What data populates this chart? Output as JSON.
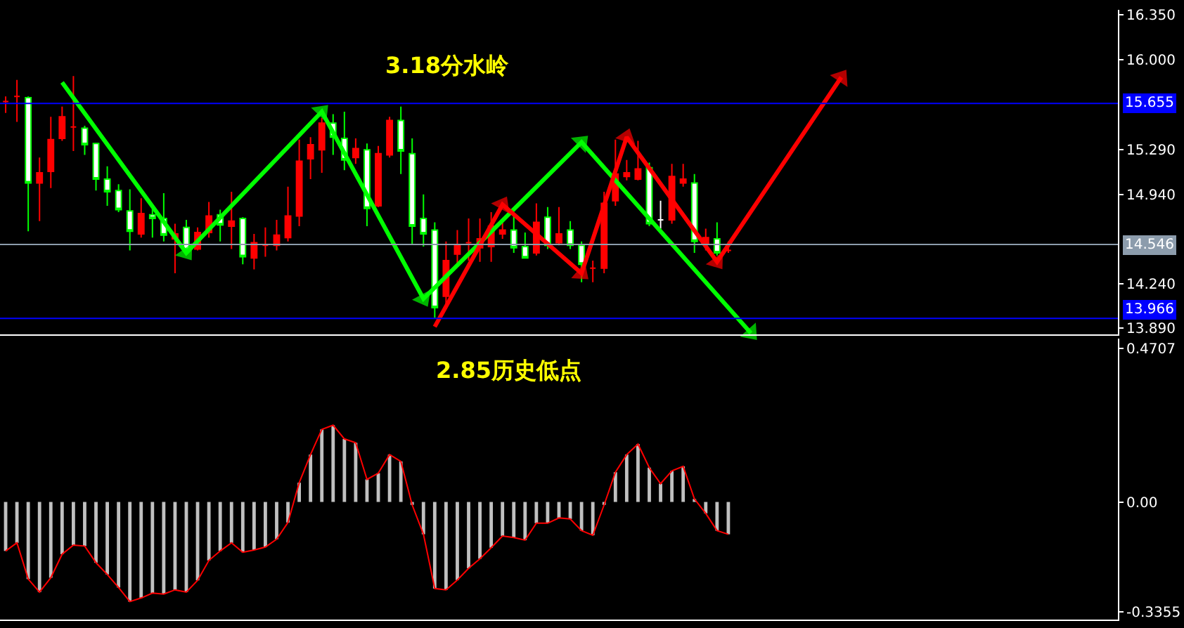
{
  "chart_data": [
    {
      "type": "candlestick",
      "annotations": [
        "3.18分水岭"
      ],
      "categories": [
        null,
        null,
        null,
        null,
        null,
        null,
        null,
        null,
        null,
        null,
        null,
        null,
        null,
        null,
        null,
        null,
        null,
        null,
        null,
        null,
        null,
        null,
        null,
        null,
        null,
        null,
        null,
        null,
        null,
        null,
        null,
        null,
        null,
        null,
        null,
        null,
        null,
        null,
        null,
        null,
        null,
        null,
        null,
        null,
        null,
        null,
        null,
        null,
        null,
        null,
        null,
        null,
        null,
        null,
        null,
        null,
        null,
        null,
        null,
        null,
        null,
        null,
        null,
        null,
        null,
        null,
        null,
        null,
        null,
        null,
        null,
        null,
        null,
        null,
        null,
        null,
        null,
        null,
        null,
        null,
        null,
        null,
        null,
        null,
        null,
        null,
        null,
        null,
        null,
        null,
        null,
        null,
        null,
        null,
        null,
        null,
        null,
        null,
        null
      ],
      "ohlc": [
        [
          15.67,
          15.71,
          15.58,
          15.67
        ],
        [
          15.71,
          15.84,
          15.51,
          15.71
        ],
        [
          15.7,
          15.71,
          14.65,
          15.03
        ],
        [
          15.03,
          15.23,
          14.73,
          15.11
        ],
        [
          15.12,
          15.55,
          14.99,
          15.37
        ],
        [
          15.38,
          15.63,
          15.36,
          15.55
        ],
        [
          15.47,
          15.87,
          15.28,
          15.47
        ],
        [
          15.46,
          15.48,
          15.25,
          15.33
        ],
        [
          15.34,
          15.34,
          14.97,
          15.06
        ],
        [
          15.06,
          15.16,
          14.85,
          14.96
        ],
        [
          14.97,
          15.02,
          14.8,
          14.82
        ],
        [
          14.81,
          14.98,
          14.5,
          14.65
        ],
        [
          14.63,
          14.91,
          14.6,
          14.79
        ],
        [
          14.78,
          14.86,
          14.6,
          14.75
        ],
        [
          14.75,
          14.95,
          14.57,
          14.62
        ],
        [
          14.59,
          14.71,
          14.32,
          14.63
        ],
        [
          14.68,
          14.74,
          14.48,
          14.5
        ],
        [
          14.51,
          14.68,
          14.5,
          14.64
        ],
        [
          14.64,
          14.88,
          14.6,
          14.77
        ],
        [
          14.78,
          14.82,
          14.57,
          14.7
        ],
        [
          14.69,
          14.96,
          14.51,
          14.73
        ],
        [
          14.75,
          14.76,
          14.39,
          14.45
        ],
        [
          14.44,
          14.63,
          14.35,
          14.56
        ],
        [
          14.54,
          14.68,
          14.45,
          14.54
        ],
        [
          14.54,
          14.74,
          14.5,
          14.62
        ],
        [
          14.6,
          15.0,
          14.57,
          14.77
        ],
        [
          14.77,
          15.37,
          14.69,
          15.2
        ],
        [
          15.22,
          15.39,
          15.06,
          15.33
        ],
        [
          15.29,
          15.54,
          15.11,
          15.5
        ],
        [
          15.5,
          15.57,
          15.25,
          15.39
        ],
        [
          15.38,
          15.59,
          15.13,
          15.21
        ],
        [
          15.23,
          15.38,
          15.18,
          15.3
        ],
        [
          15.29,
          15.34,
          14.69,
          14.83
        ],
        [
          14.85,
          15.32,
          14.84,
          15.26
        ],
        [
          15.25,
          15.55,
          15.23,
          15.52
        ],
        [
          15.52,
          15.63,
          15.1,
          15.28
        ],
        [
          15.26,
          15.38,
          14.55,
          14.69
        ],
        [
          14.75,
          14.94,
          14.53,
          14.63
        ],
        [
          14.66,
          14.72,
          13.97,
          14.05
        ],
        [
          14.14,
          14.57,
          14.07,
          14.42
        ],
        [
          14.47,
          14.66,
          14.39,
          14.54
        ],
        [
          14.56,
          14.75,
          14.42,
          14.56
        ],
        [
          14.52,
          14.75,
          14.41,
          14.59
        ],
        [
          14.53,
          14.8,
          14.41,
          14.69
        ],
        [
          14.63,
          14.73,
          14.59,
          14.66
        ],
        [
          14.66,
          14.78,
          14.48,
          14.52
        ],
        [
          14.53,
          14.64,
          14.44,
          14.44
        ],
        [
          14.48,
          14.87,
          14.46,
          14.72
        ],
        [
          14.76,
          14.84,
          14.51,
          14.54
        ],
        [
          14.56,
          14.84,
          14.54,
          14.63
        ],
        [
          14.66,
          14.73,
          14.51,
          14.54
        ],
        [
          14.54,
          14.57,
          14.25,
          14.39
        ],
        [
          14.36,
          14.42,
          14.25,
          14.36
        ],
        [
          14.36,
          14.96,
          14.32,
          14.87
        ],
        [
          14.89,
          15.37,
          14.85,
          15.1
        ],
        [
          15.08,
          15.21,
          15.05,
          15.11
        ],
        [
          15.06,
          15.36,
          15.05,
          15.14
        ],
        [
          15.15,
          15.19,
          14.69,
          14.71
        ],
        [
          14.74,
          14.89,
          14.67,
          14.74
        ],
        [
          14.74,
          15.18,
          14.71,
          15.08
        ],
        [
          15.03,
          15.18,
          15.0,
          15.06
        ],
        [
          15.03,
          15.1,
          14.48,
          14.57
        ],
        [
          14.55,
          14.67,
          14.5,
          14.6
        ],
        [
          14.59,
          14.72,
          14.46,
          14.48
        ],
        [
          14.5,
          14.57,
          14.48,
          14.5
        ],
        null,
        null,
        null,
        null,
        null,
        null,
        null,
        null,
        null,
        null,
        null,
        null,
        null,
        null,
        null,
        null,
        null,
        null,
        null,
        null,
        null,
        null,
        null,
        null,
        null,
        null,
        null,
        null,
        null,
        null,
        null,
        null,
        null,
        null
      ],
      "colors": [
        "#ff0000",
        "#ff0000",
        "#ffffff",
        "#ff0000",
        "#ff0000",
        "#ff0000",
        "#ff0000",
        "#ffffff",
        "#ffffff",
        "#ffffff",
        "#ffffff",
        "#ffffff",
        "#ff0000",
        "#ffffff",
        "#ffffff",
        "#ff0000",
        "#ffffff",
        "#ff0000",
        "#ff0000",
        "#ffffff",
        "#ff0000",
        "#ffffff",
        "#ff0000",
        "#ff0000",
        "#ff0000",
        "#ff0000",
        "#ff0000",
        "#ff0000",
        "#ff0000",
        "#ffffff",
        "#ffffff",
        "#ff0000",
        "#ffffff",
        "#ff0000",
        "#ff0000",
        "#ffffff",
        "#ffffff",
        "#ffffff",
        "#ffffff",
        "#ff0000",
        "#ff0000",
        "#ff0000",
        "#ff0000",
        "#ff0000",
        "#ff0000",
        "#ffffff",
        "#ffffff",
        "#ff0000",
        "#ffffff",
        "#ff0000",
        "#ffffff",
        "#ffffff",
        "#ff0000",
        "#ff0000",
        "#ff0000",
        "#ff0000",
        "#ff0000",
        "#ffffff",
        "#ffffff",
        "#ff0000",
        "#ff0000",
        "#ffffff",
        "#ff0000",
        "#ffffff",
        "#ff0000",
        null,
        null,
        null,
        null,
        null,
        null,
        null,
        null,
        null,
        null,
        null,
        null,
        null,
        null,
        null,
        null,
        null,
        null,
        null,
        null,
        null,
        null,
        null,
        null,
        null,
        null,
        null,
        null,
        null,
        null,
        null,
        null,
        null,
        null
      ],
      "series": [
        {
          "type": "line",
          "color": "#00ff00",
          "marker": "triangle",
          "values": [
            null,
            null,
            null,
            null,
            null,
            15.82,
            null,
            null,
            null,
            null,
            null,
            null,
            null,
            null,
            null,
            null,
            14.48,
            null,
            null,
            null,
            null,
            null,
            null,
            null,
            null,
            null,
            null,
            null,
            15.59,
            null,
            null,
            null,
            null,
            null,
            null,
            null,
            null,
            14.12,
            null,
            null,
            null,
            null,
            null,
            null,
            null,
            null,
            null,
            null,
            null,
            null,
            null,
            15.35,
            null,
            null,
            null,
            null,
            null,
            null,
            null,
            null,
            null,
            null,
            null,
            null,
            null,
            null,
            13.85,
            null,
            null,
            null,
            null,
            null,
            null,
            null,
            null,
            null,
            null,
            null,
            null,
            null,
            null,
            null,
            null,
            null,
            null,
            null,
            null,
            null,
            null,
            null,
            null,
            null,
            null,
            null,
            null,
            null,
            null,
            null,
            null
          ]
        },
        {
          "type": "line",
          "color": "#ff0000",
          "marker": "triangle",
          "values": [
            null,
            null,
            null,
            null,
            null,
            null,
            null,
            null,
            null,
            null,
            null,
            null,
            null,
            null,
            null,
            null,
            null,
            null,
            null,
            null,
            null,
            null,
            null,
            null,
            null,
            null,
            null,
            null,
            null,
            null,
            null,
            null,
            null,
            null,
            null,
            null,
            null,
            null,
            13.9,
            null,
            null,
            null,
            null,
            null,
            14.86,
            null,
            null,
            null,
            null,
            null,
            null,
            14.32,
            null,
            null,
            null,
            15.39,
            null,
            null,
            null,
            null,
            null,
            null,
            null,
            14.41,
            null,
            null,
            null,
            null,
            null,
            null,
            null,
            null,
            null,
            null,
            15.86,
            null,
            null,
            null,
            null,
            null,
            null,
            null,
            null,
            null,
            null,
            null,
            null,
            null,
            null,
            null,
            null,
            null,
            null,
            null,
            null,
            null,
            null,
            null,
            null
          ]
        }
      ],
      "ref_lines": [
        {
          "axis": "y",
          "value": 15.655,
          "label": "15.655",
          "color": "#0000ff"
        },
        {
          "axis": "y",
          "value": 14.546,
          "label": "14.546",
          "color": "#8c9cac"
        },
        {
          "axis": "y",
          "value": 13.966,
          "label": "13.966",
          "color": "#0000ff"
        }
      ],
      "ylim": [
        13.84,
        16.39
      ],
      "yticks": [
        {
          "value": 13.89,
          "label": "13.890"
        },
        {
          "value": 14.24,
          "label": "14.240"
        },
        {
          "value": 14.94,
          "label": "14.940"
        },
        {
          "value": 15.29,
          "label": "15.290"
        },
        {
          "value": 16.0,
          "label": "16.000"
        },
        {
          "value": 16.35,
          "label": "16.350"
        }
      ],
      "tick_labels": "y"
    },
    {
      "type": "bar",
      "annotations": [
        "2.85历史低点"
      ],
      "categories": [
        null,
        null,
        null,
        null,
        null,
        null,
        null,
        null,
        null,
        null,
        null,
        null,
        null,
        null,
        null,
        null,
        null,
        null,
        null,
        null,
        null,
        null,
        null,
        null,
        null,
        null,
        null,
        null,
        null,
        null,
        null,
        null,
        null,
        null,
        null,
        null,
        null,
        null,
        null,
        null,
        null,
        null,
        null,
        null,
        null,
        null,
        null,
        null,
        null,
        null,
        null,
        null,
        null,
        null,
        null,
        null,
        null,
        null,
        null,
        null,
        null,
        null,
        null,
        null,
        null,
        null,
        null,
        null,
        null,
        null,
        null,
        null,
        null,
        null,
        null,
        null,
        null,
        null,
        null,
        null,
        null,
        null,
        null,
        null,
        null,
        null,
        null,
        null,
        null,
        null,
        null,
        null,
        null,
        null,
        null,
        null,
        null,
        null,
        null
      ],
      "series": [
        {
          "type": "bar",
          "color": "#c0c0c0",
          "values": [
            -0.15,
            -0.125,
            -0.236,
            -0.276,
            -0.232,
            -0.16,
            -0.132,
            -0.135,
            -0.186,
            -0.222,
            -0.262,
            -0.305,
            -0.294,
            -0.279,
            -0.282,
            -0.269,
            -0.276,
            -0.24,
            -0.179,
            -0.15,
            -0.125,
            -0.154,
            -0.147,
            -0.138,
            -0.114,
            -0.063,
            0.059,
            0.145,
            0.222,
            0.235,
            0.193,
            0.181,
            0.069,
            0.088,
            0.145,
            0.124,
            -0.009,
            -0.099,
            -0.265,
            -0.269,
            -0.239,
            -0.203,
            -0.174,
            -0.14,
            -0.104,
            -0.109,
            -0.117,
            -0.065,
            -0.065,
            -0.049,
            -0.052,
            -0.088,
            -0.102,
            -0.009,
            0.091,
            0.145,
            0.177,
            0.105,
            0.056,
            0.095,
            0.109,
            0.009,
            -0.035,
            -0.088,
            -0.099,
            null,
            null,
            null,
            null,
            null,
            null,
            null,
            null,
            null,
            null,
            null,
            null,
            null,
            null,
            null,
            null,
            null,
            null,
            null,
            null,
            null,
            null,
            null,
            null,
            null,
            null,
            null,
            null,
            null,
            null,
            null,
            null,
            null,
            null
          ]
        },
        {
          "type": "line",
          "color": "#ff0000",
          "values": [
            -0.15,
            -0.125,
            -0.236,
            -0.276,
            -0.232,
            -0.16,
            -0.132,
            -0.135,
            -0.186,
            -0.222,
            -0.262,
            -0.305,
            -0.294,
            -0.279,
            -0.282,
            -0.269,
            -0.276,
            -0.24,
            -0.179,
            -0.15,
            -0.125,
            -0.154,
            -0.147,
            -0.138,
            -0.114,
            -0.063,
            0.059,
            0.145,
            0.222,
            0.235,
            0.193,
            0.181,
            0.069,
            0.088,
            0.145,
            0.124,
            -0.009,
            -0.099,
            -0.265,
            -0.269,
            -0.239,
            -0.203,
            -0.174,
            -0.14,
            -0.104,
            -0.109,
            -0.117,
            -0.065,
            -0.065,
            -0.049,
            -0.052,
            -0.088,
            -0.102,
            -0.009,
            0.091,
            0.145,
            0.177,
            0.105,
            0.056,
            0.095,
            0.109,
            0.009,
            -0.035,
            -0.088,
            -0.099,
            null,
            null,
            null,
            null,
            null,
            null,
            null,
            null,
            null,
            null,
            null,
            null,
            null,
            null,
            null,
            null,
            null,
            null,
            null,
            null,
            null,
            null,
            null,
            null,
            null,
            null,
            null,
            null,
            null,
            null,
            null,
            null,
            null,
            null
          ]
        }
      ],
      "ylim": [
        -0.36,
        0.5
      ],
      "yticks": [
        {
          "value": 0.4707,
          "label": "0.4707"
        },
        {
          "value": 0,
          "label": "0.00"
        },
        {
          "value": -0.3355,
          "label": "-0.3355"
        }
      ],
      "tick_labels": "y"
    }
  ]
}
